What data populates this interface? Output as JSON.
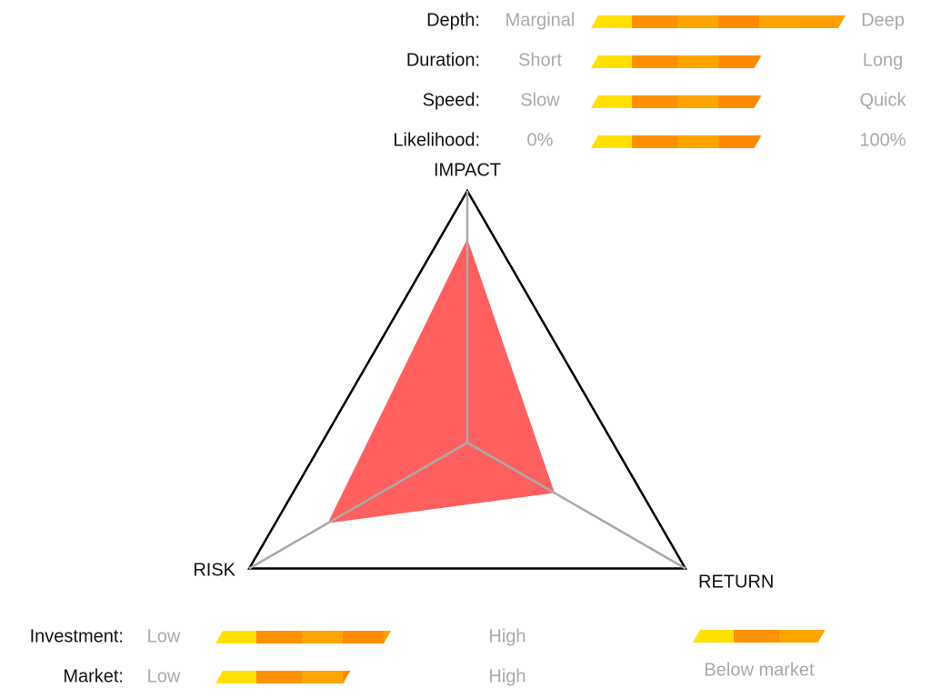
{
  "top_scales": [
    {
      "label": "Depth:",
      "low": "Marginal",
      "high": "Deep",
      "value": 100
    },
    {
      "label": "Duration:",
      "low": "Short",
      "high": "Long",
      "value": 67
    },
    {
      "label": "Speed:",
      "low": "Slow",
      "high": "Quick",
      "value": 67
    },
    {
      "label": "Likelihood:",
      "low": "0%",
      "high": "100%",
      "value": 67
    }
  ],
  "radar": {
    "axes": [
      "IMPACT",
      "RETURN",
      "RISK"
    ],
    "values": [
      81,
      40,
      64
    ],
    "rlim": [
      0,
      100
    ]
  },
  "bottom_scales": [
    {
      "label": "Investment:",
      "low": "Low",
      "high": "High",
      "value": 69
    },
    {
      "label": "Market:",
      "low": "Low",
      "high": "High",
      "value": 53
    }
  ],
  "market_position": {
    "label": "Below market",
    "value": 52
  }
}
